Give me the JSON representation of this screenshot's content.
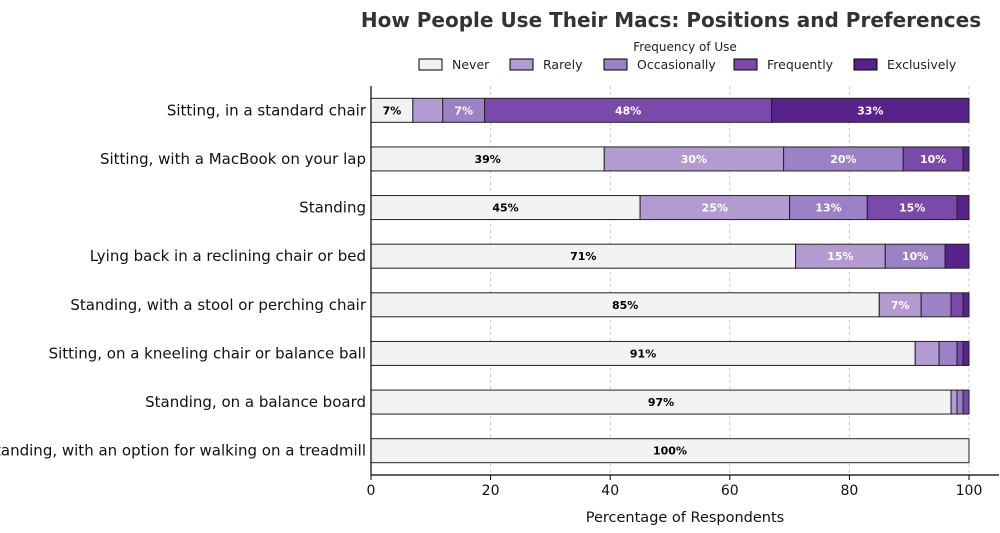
{
  "chart_data": {
    "type": "bar",
    "orientation": "horizontal",
    "stacked": true,
    "title": "How People Use Their Macs: Positions and Preferences",
    "xlabel": "Percentage of Respondents",
    "ylabel": "",
    "xlim": [
      0,
      100
    ],
    "xticks": [
      "0",
      "20",
      "40",
      "60",
      "80",
      "100"
    ],
    "grid": "vertical dashed",
    "legend": {
      "title": "Frequency of Use",
      "position": "top"
    },
    "categories": [
      "Sitting, in a standard chair",
      "Sitting, with a MacBook on your lap",
      "Standing",
      "Lying back in a reclining chair or bed",
      "Standing, with a stool or perching chair",
      "Sitting, on a kneeling chair or balance ball",
      "Standing, on a balance board",
      "Standing, with an option for walking on a treadmill"
    ],
    "series": [
      {
        "name": "Never",
        "color": "#f2f2f2",
        "label_color": "#000000",
        "values": [
          7,
          39,
          45,
          71,
          85,
          91,
          97,
          100
        ]
      },
      {
        "name": "Rarely",
        "color": "#b39ad1",
        "label_color": "#ffffff",
        "values": [
          5,
          30,
          25,
          15,
          7,
          4,
          1,
          0
        ]
      },
      {
        "name": "Occasionally",
        "color": "#9b82c7",
        "label_color": "#ffffff",
        "values": [
          7,
          20,
          13,
          10,
          5,
          3,
          1,
          0
        ]
      },
      {
        "name": "Frequently",
        "color": "#7a4aab",
        "label_color": "#ffffff",
        "values": [
          48,
          10,
          15,
          0,
          2,
          1,
          1,
          0
        ]
      },
      {
        "name": "Exclusively",
        "color": "#58228c",
        "label_color": "#ffffff",
        "values": [
          33,
          1,
          3,
          4,
          1,
          1,
          0,
          0
        ]
      }
    ],
    "data_labels": [
      [
        "7%",
        "",
        "7%",
        "48%",
        "33%"
      ],
      [
        "39%",
        "30%",
        "20%",
        "10%",
        ""
      ],
      [
        "45%",
        "25%",
        "13%",
        "15%",
        ""
      ],
      [
        "71%",
        "15%",
        "10%",
        "",
        ""
      ],
      [
        "85%",
        "7%",
        "",
        "",
        ""
      ],
      [
        "91%",
        "",
        "",
        "",
        ""
      ],
      [
        "97%",
        "",
        "",
        "",
        ""
      ],
      [
        "100%",
        "",
        "",
        "",
        ""
      ]
    ]
  }
}
